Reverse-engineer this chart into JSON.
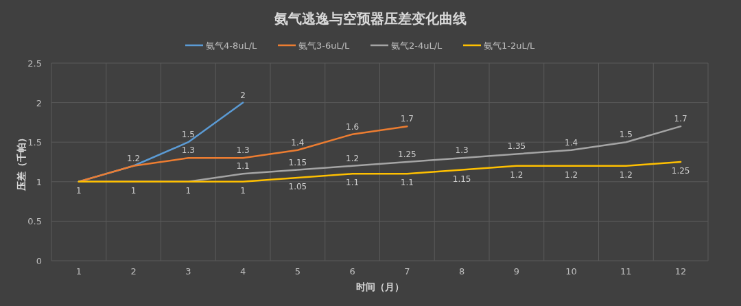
{
  "chart_data": {
    "type": "line",
    "title": "氨气逃逸与空预器压差变化曲线",
    "xlabel": "时间（月）",
    "ylabel": "压差（千帕）",
    "categories": [
      "1",
      "2",
      "3",
      "4",
      "5",
      "6",
      "7",
      "8",
      "9",
      "10",
      "11",
      "12"
    ],
    "series": [
      {
        "name": "氨气4-8uL/L",
        "color": "#5b9bd5",
        "values": [
          1,
          1.2,
          1.5,
          2,
          null,
          null,
          null,
          null,
          null,
          null,
          null,
          null
        ],
        "value_labels": [
          null,
          "1.2",
          "1.5",
          "2",
          null,
          null,
          null,
          null,
          null,
          null,
          null,
          null
        ]
      },
      {
        "name": "氨气3-6uL/L",
        "color": "#ed7d31",
        "values": [
          1,
          1.2,
          1.3,
          1.3,
          1.4,
          1.6,
          1.7,
          null,
          null,
          null,
          null,
          null
        ],
        "value_labels": [
          null,
          null,
          "1.3",
          "1.3",
          "1.4",
          "1.6",
          "1.7",
          null,
          null,
          null,
          null,
          null
        ]
      },
      {
        "name": "氨气2-4uL/L",
        "color": "#a5a5a5",
        "values": [
          1,
          1,
          1,
          1.1,
          1.15,
          1.2,
          1.25,
          1.3,
          1.35,
          1.4,
          1.5,
          1.7
        ],
        "value_labels": [
          null,
          null,
          null,
          "1.1",
          "1.15",
          "1.2",
          "1.25",
          "1.3",
          "1.35",
          "1.4",
          "1.5",
          "1.7"
        ]
      },
      {
        "name": "氨气1-2uL/L",
        "color": "#ffc000",
        "values": [
          1,
          1,
          1,
          1,
          1.05,
          1.1,
          1.1,
          1.15,
          1.2,
          1.2,
          1.2,
          1.25
        ],
        "value_labels": [
          "1",
          "1",
          "1",
          "1",
          "1.05",
          "1.1",
          "1.1",
          "1.15",
          "1.2",
          "1.2",
          "1.2",
          "1.25"
        ]
      }
    ],
    "ylim": [
      0,
      2.5
    ],
    "yticks": [
      0,
      0.5,
      1,
      1.5,
      2,
      2.5
    ],
    "grid": true,
    "legend": "top"
  }
}
